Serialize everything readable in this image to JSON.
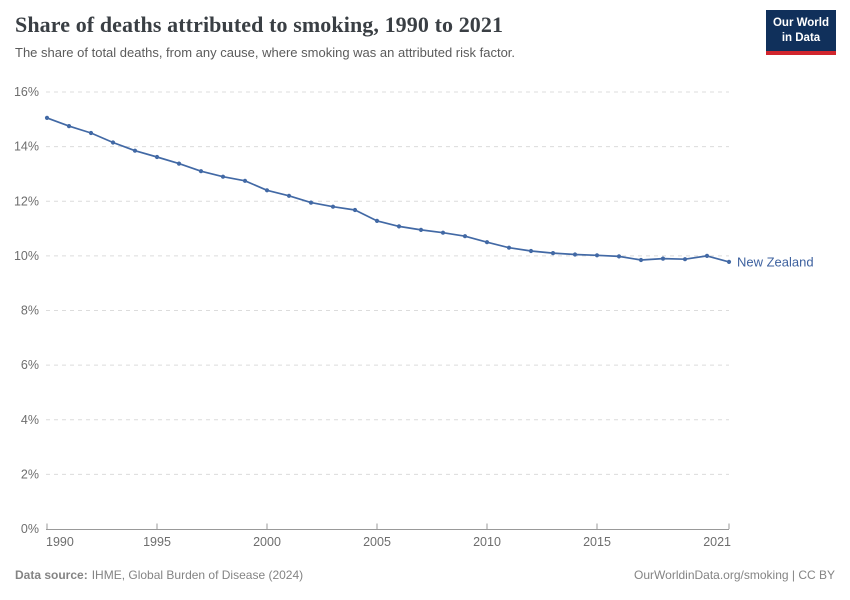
{
  "header": {
    "title": "Share of deaths attributed to smoking, 1990 to 2021",
    "subtitle": "The share of total deaths, from any cause, where smoking was an attributed risk factor."
  },
  "branding": {
    "logo_line1": "Our World",
    "logo_line2": "in Data",
    "logo_bg_color": "#10305b",
    "logo_accent_color": "#d1252d"
  },
  "chart_data": {
    "type": "line",
    "title": "Share of deaths attributed to smoking, 1990 to 2021",
    "xlabel": "",
    "ylabel": "",
    "xlim": [
      1990,
      2021
    ],
    "ylim": [
      0,
      16
    ],
    "xticks": [
      1990,
      1995,
      2000,
      2005,
      2010,
      2015,
      2021
    ],
    "yticks": [
      0,
      2,
      4,
      6,
      8,
      10,
      12,
      14,
      16
    ],
    "ytick_suffix": "%",
    "grid": "horizontal-dashed",
    "legend": "end-of-line-label",
    "x": [
      1990,
      1991,
      1992,
      1993,
      1994,
      1995,
      1996,
      1997,
      1998,
      1999,
      2000,
      2001,
      2002,
      2003,
      2004,
      2005,
      2006,
      2007,
      2008,
      2009,
      2010,
      2011,
      2012,
      2013,
      2014,
      2015,
      2016,
      2017,
      2018,
      2019,
      2020,
      2021
    ],
    "series": [
      {
        "name": "New Zealand",
        "color": "#4269a5",
        "label_color": "#3d619f",
        "values": [
          15.05,
          14.75,
          14.5,
          14.15,
          13.85,
          13.62,
          13.38,
          13.1,
          12.9,
          12.75,
          12.4,
          12.2,
          11.95,
          11.8,
          11.68,
          11.28,
          11.08,
          10.95,
          10.85,
          10.72,
          10.5,
          10.3,
          10.18,
          10.1,
          10.05,
          10.02,
          9.98,
          9.85,
          9.9,
          9.88,
          10.0,
          9.78
        ]
      }
    ],
    "colors": {
      "gridline": "#dcdcdc",
      "axis": "#999999",
      "tick_text": "#6e6e6e"
    }
  },
  "footer": {
    "source_label": "Data source:",
    "source_text": "IHME, Global Burden of Disease (2024)",
    "credit": "OurWorldinData.org/smoking | CC BY"
  }
}
